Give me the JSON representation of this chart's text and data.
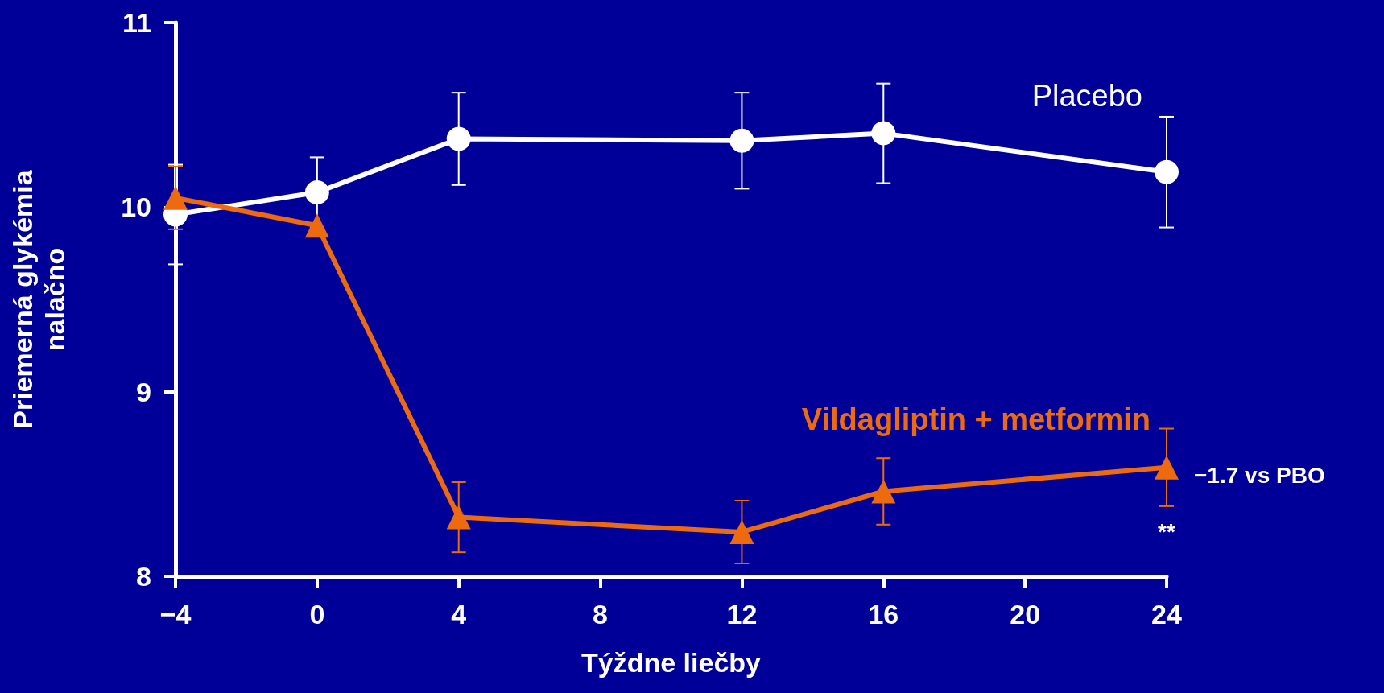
{
  "chart_data": {
    "type": "line",
    "xlabel": "Týždne liečby",
    "ylabel": "Priemerná glykémia\nnalačno",
    "x": [
      -4,
      0,
      4,
      12,
      16,
      24
    ],
    "series": [
      {
        "name": "Placebo",
        "color": "#ffffff",
        "marker": "circle",
        "values": [
          9.96,
          10.08,
          10.37,
          10.36,
          10.4,
          10.19
        ],
        "errors": [
          0.27,
          0.19,
          0.25,
          0.26,
          0.27,
          0.3
        ]
      },
      {
        "name": "Vildagliptin + metformin",
        "color": "#ee6a0e",
        "marker": "triangle",
        "values": [
          10.05,
          9.9,
          8.32,
          8.24,
          8.46,
          8.59
        ],
        "errors": [
          0.17,
          null,
          0.19,
          0.17,
          0.18,
          0.21
        ]
      }
    ],
    "xlim": [
      -4,
      24
    ],
    "xticks": [
      -4,
      0,
      4,
      8,
      12,
      16,
      20,
      24
    ],
    "ylim": [
      8,
      11
    ],
    "yticks": [
      8,
      9,
      10,
      11
    ],
    "grid": false,
    "legend": false,
    "line_style": "solid",
    "annotations": [
      {
        "text": "−1.7 vs PBO",
        "x": 24,
        "y": 8.59
      },
      "**"
    ]
  }
}
